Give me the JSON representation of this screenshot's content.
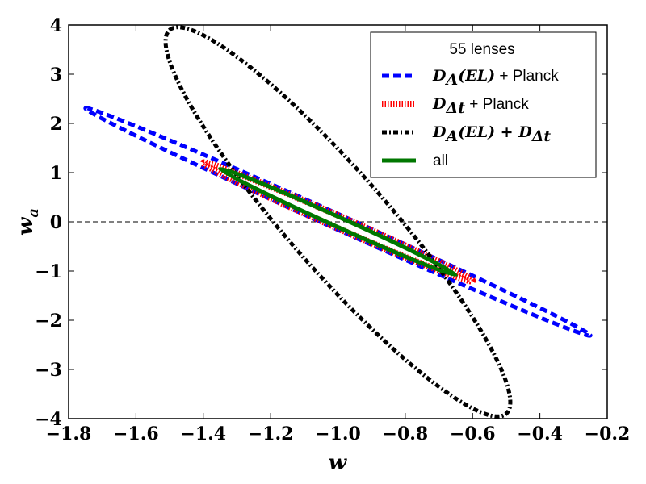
{
  "chart_data": {
    "type": "line",
    "title": "",
    "xlabel": "w",
    "ylabel": "w",
    "ylabel_subscript": "a",
    "xlim": [
      -1.8,
      -0.2
    ],
    "ylim": [
      -4,
      4
    ],
    "x_ticks": [
      -1.8,
      -1.6,
      -1.4,
      -1.2,
      -1.0,
      -0.8,
      -0.6,
      -0.4,
      -0.2
    ],
    "x_tick_labels": [
      "−1.8",
      "−1.6",
      "−1.4",
      "−1.2",
      "−1.0",
      "−0.8",
      "−0.6",
      "−0.4",
      "−0.2"
    ],
    "y_ticks": [
      -4,
      -3,
      -2,
      -1,
      0,
      1,
      2,
      3,
      4
    ],
    "y_tick_labels": [
      "−4",
      "−3",
      "−2",
      "−1",
      "0",
      "1",
      "2",
      "3",
      "4"
    ],
    "reference_lines": {
      "vertical_x": -1.0,
      "horizontal_y": 0.0
    },
    "legend": {
      "title": "55 lenses",
      "placement": "top-right",
      "entries": [
        {
          "math": "D",
          "sub": "A",
          "math_rest": "(EL)",
          "text": " + Planck"
        },
        {
          "math": "D",
          "sub": "Δt",
          "math_rest": "",
          "text": " + Planck"
        },
        {
          "math": "D",
          "sub": "A",
          "math_rest": "(EL) + D",
          "sub2": "Δt",
          "text": ""
        },
        {
          "math": "",
          "sub": "",
          "math_rest": "",
          "text": "all"
        }
      ]
    },
    "series": [
      {
        "name": "DA(EL) + Planck",
        "color": "#0000ff",
        "dash": "dashed",
        "center": [
          -1.0,
          0.0
        ],
        "major_end": [
          -1.75,
          2.31
        ],
        "minor_end": [
          -0.99,
          0.13
        ]
      },
      {
        "name": "DΔt + Planck",
        "color": "#ff0000",
        "dash": "dotted",
        "center": [
          -1.0,
          0.0
        ],
        "major_end": [
          -1.4,
          1.2
        ],
        "minor_end": [
          -0.99,
          0.1
        ]
      },
      {
        "name": "DA(EL) + DΔt",
        "color": "#000000",
        "dash": "dashdot",
        "center": [
          -1.0,
          0.0
        ],
        "major_end": [
          -1.5,
          3.9
        ],
        "minor_end": [
          -0.86,
          0.3
        ]
      },
      {
        "name": "all",
        "color": "#007700",
        "dash": "solid",
        "center": [
          -1.0,
          0.0
        ],
        "major_end": [
          -1.35,
          1.08
        ],
        "minor_end": [
          -0.99,
          0.07
        ]
      }
    ]
  }
}
